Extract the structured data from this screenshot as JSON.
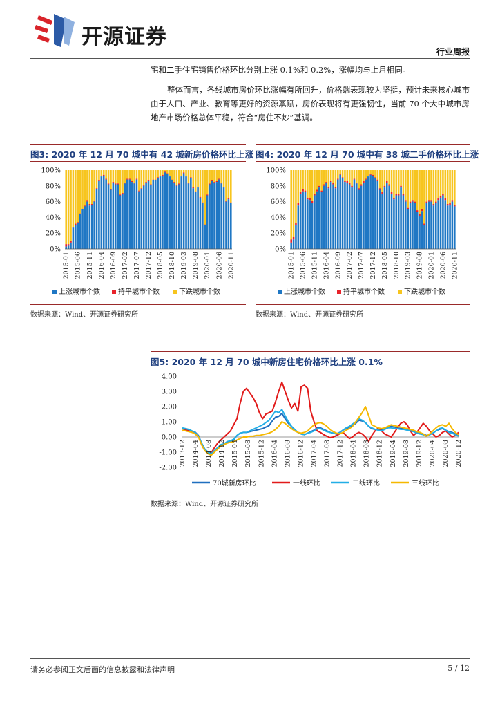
{
  "header": {
    "brand_name": "开源证券",
    "section_tag": "行业周报"
  },
  "body": {
    "paragraph_1": "宅和二手住宅销售价格环比分别上涨 0.1%和 0.2%，涨幅均与上月相同。",
    "paragraph_2": "整体而言，各线城市房价环比涨幅有所回升，价格端表现较为坚挺，预计未来核心城市由于人口、产业、教育等更好的资源禀赋，房价表现将有更强韧性，当前 70 个大中城市房地产市场价格总体平稳，符合“房住不炒”基调。"
  },
  "figures": {
    "fig3": {
      "label": "图3:",
      "title": "2020 年 12 月 70 城中有 42 城新房价格环比上涨",
      "source": "数据来源：Wind、开源证券研究所"
    },
    "fig4": {
      "label": "图4:",
      "title": "2020 年 12 月 70 城中有 38 城二手价格环比上涨",
      "source": "数据来源：Wind、开源证券研究所"
    },
    "fig5": {
      "label": "图5:",
      "title": "2020 年 12 月 70 城中新房住宅价格环比上涨 0.1%",
      "source": "数据来源：Wind、开源证券研究所"
    }
  },
  "footer": {
    "disclaimer": "请务必参阅正文后面的信息披露和法律声明",
    "page": "5 / 12"
  },
  "chart_data": [
    {
      "type": "bar",
      "stacked": true,
      "y_unit": "%",
      "ylim": [
        0,
        100
      ],
      "yticks": [
        "0%",
        "20%",
        "40%",
        "60%",
        "80%",
        "100%"
      ],
      "x_tick_labels": [
        "2015-01",
        "2015-06",
        "2015-11",
        "2016-04",
        "2016-09",
        "2017-02",
        "2017-07",
        "2017-12",
        "2018-05",
        "2018-10",
        "2019-03",
        "2019-08",
        "2020-01",
        "2020-06",
        "2020-11"
      ],
      "legend": [
        "上涨城市个数",
        "持平城市个数",
        "下跌城市个数"
      ],
      "legend_placement": "bottom",
      "colors": [
        "#1f77c4",
        "#e8222a",
        "#f7c51e"
      ],
      "rise_pct": [
        3,
        4,
        8,
        27,
        30,
        33,
        44,
        50,
        54,
        60,
        55,
        56,
        60,
        76,
        86,
        92,
        93,
        88,
        82,
        75,
        84,
        82,
        82,
        68,
        70,
        83,
        88,
        88,
        85,
        83,
        88,
        73,
        76,
        80,
        84,
        86,
        81,
        87,
        87,
        90,
        92,
        93,
        97,
        95,
        92,
        87,
        84,
        80,
        82,
        92,
        96,
        92,
        83,
        90,
        77,
        72,
        78,
        65,
        58,
        30,
        68,
        82,
        86,
        84,
        85,
        88,
        83,
        78,
        60,
        63,
        58
      ],
      "flat_pct": [
        3,
        2,
        2,
        1,
        2,
        1,
        1,
        1,
        1,
        2,
        2,
        1,
        1,
        1,
        1,
        1,
        1,
        1,
        1,
        1,
        1,
        1,
        1,
        1,
        1,
        1,
        1,
        1,
        1,
        1,
        1,
        1,
        1,
        1,
        1,
        1,
        1,
        1,
        1,
        1,
        1,
        1,
        1,
        1,
        1,
        1,
        1,
        1,
        1,
        1,
        1,
        1,
        1,
        1,
        1,
        1,
        1,
        1,
        1,
        1,
        1,
        1,
        1,
        1,
        1,
        1,
        1,
        1,
        1,
        1,
        1
      ]
    },
    {
      "type": "bar",
      "stacked": true,
      "y_unit": "%",
      "ylim": [
        0,
        100
      ],
      "yticks": [
        "0%",
        "20%",
        "40%",
        "60%",
        "80%",
        "100%"
      ],
      "x_tick_labels": [
        "2015-01",
        "2015-06",
        "2015-11",
        "2016-04",
        "2016-09",
        "2017-02",
        "2017-07",
        "2017-12",
        "2018-05",
        "2018-10",
        "2019-03",
        "2019-08",
        "2020-01",
        "2020-06",
        "2020-11"
      ],
      "legend": [
        "上涨城市个数",
        "持平城市个数",
        "下跌城市个数"
      ],
      "legend_placement": "bottom",
      "colors": [
        "#1f77c4",
        "#e8222a",
        "#f7c51e"
      ],
      "rise_pct": [
        8,
        12,
        30,
        55,
        70,
        73,
        72,
        63,
        62,
        58,
        68,
        73,
        78,
        72,
        80,
        84,
        77,
        85,
        82,
        77,
        88,
        94,
        90,
        85,
        84,
        82,
        78,
        88,
        83,
        75,
        80,
        84,
        88,
        92,
        94,
        93,
        90,
        86,
        75,
        70,
        78,
        84,
        80,
        70,
        63,
        68,
        68,
        78,
        68,
        60,
        50,
        58,
        60,
        58,
        47,
        42,
        48,
        30,
        58,
        60,
        60,
        55,
        58,
        62,
        65,
        68,
        62,
        55,
        56,
        60,
        54
      ],
      "flat_pct": [
        4,
        3,
        3,
        3,
        2,
        3,
        2,
        2,
        3,
        3,
        2,
        2,
        2,
        2,
        2,
        1,
        2,
        1,
        2,
        2,
        1,
        1,
        1,
        1,
        2,
        2,
        2,
        1,
        1,
        2,
        2,
        2,
        1,
        1,
        1,
        1,
        1,
        2,
        2,
        2,
        2,
        2,
        2,
        2,
        2,
        2,
        2,
        2,
        2,
        2,
        2,
        2,
        2,
        2,
        2,
        2,
        2,
        2,
        2,
        2,
        2,
        2,
        2,
        2,
        2,
        2,
        2,
        2,
        2,
        2,
        2
      ]
    },
    {
      "type": "line",
      "ylim": [
        -2,
        4
      ],
      "yticks": [
        "-2.00",
        "-1.00",
        "0.00",
        "1.00",
        "2.00",
        "3.00",
        "4.00"
      ],
      "x_tick_labels": [
        "2013-12",
        "2014-04",
        "2014-08",
        "2014-12",
        "2015-04",
        "2015-08",
        "2015-12",
        "2016-04",
        "2016-08",
        "2016-12",
        "2017-04",
        "2017-08",
        "2017-12",
        "2018-04",
        "2018-08",
        "2018-12",
        "2019-04",
        "2019-08",
        "2019-12",
        "2020-04",
        "2020-08",
        "2020-12"
      ],
      "legend_placement": "bottom",
      "series": [
        {
          "name": "70城新房环比",
          "color": "#1f6fbf",
          "values": [
            0.55,
            0.48,
            0.42,
            0.38,
            0.32,
            0.1,
            -0.4,
            -0.8,
            -1.0,
            -1.1,
            -0.9,
            -0.7,
            -0.55,
            -0.5,
            -0.35,
            -0.3,
            -0.2,
            0.1,
            0.25,
            0.3,
            0.3,
            0.35,
            0.4,
            0.45,
            0.5,
            0.55,
            0.65,
            0.75,
            1.05,
            1.3,
            1.35,
            1.55,
            1.2,
            0.9,
            0.7,
            0.45,
            0.3,
            0.2,
            0.15,
            0.25,
            0.35,
            0.45,
            0.6,
            0.6,
            0.5,
            0.4,
            0.3,
            0.25,
            0.2,
            0.3,
            0.45,
            0.55,
            0.65,
            0.75,
            0.9,
            1.1,
            1.05,
            0.95,
            0.7,
            0.55,
            0.5,
            0.5,
            0.45,
            0.55,
            0.65,
            0.7,
            0.65,
            0.6,
            0.55,
            0.55,
            0.5,
            0.45,
            0.4,
            0.3,
            0.25,
            0.2,
            0.1,
            0.15,
            0.25,
            0.4,
            0.5,
            0.55,
            0.45,
            0.35,
            0.3,
            0.2,
            0.1
          ]
        },
        {
          "name": "一线环比",
          "color": "#e11a1a",
          "values": [
            0.4,
            0.45,
            0.4,
            0.35,
            0.3,
            0.05,
            -0.5,
            -0.9,
            -1.0,
            -1.05,
            -0.7,
            -0.4,
            -0.2,
            0.0,
            0.2,
            0.4,
            0.8,
            1.2,
            2.2,
            3.0,
            3.2,
            2.9,
            2.6,
            2.2,
            1.6,
            1.2,
            1.5,
            1.6,
            1.7,
            2.3,
            3.0,
            3.6,
            3.0,
            2.4,
            1.9,
            2.2,
            1.7,
            3.3,
            3.4,
            3.2,
            1.7,
            1.0,
            0.4,
            0.3,
            0.15,
            0.05,
            -0.05,
            0.0,
            0.1,
            0.2,
            0.3,
            0.1,
            -0.1,
            0.0,
            0.2,
            0.3,
            0.2,
            0.0,
            -0.3,
            0.1,
            0.4,
            0.6,
            0.4,
            0.2,
            0.1,
            0.0,
            0.3,
            0.6,
            0.9,
            1.0,
            0.8,
            0.4,
            0.1,
            0.3,
            0.6,
            0.9,
            0.7,
            0.4,
            0.2,
            0.0,
            0.1,
            0.3,
            0.4,
            0.2,
            0.0,
            0.1,
            0.3
          ]
        },
        {
          "name": "二线环比",
          "color": "#22aee6",
          "values": [
            0.6,
            0.55,
            0.5,
            0.4,
            0.3,
            0.05,
            -0.4,
            -0.8,
            -1.0,
            -1.1,
            -0.9,
            -0.7,
            -0.5,
            -0.45,
            -0.3,
            -0.25,
            -0.15,
            0.1,
            0.25,
            0.3,
            0.3,
            0.4,
            0.5,
            0.6,
            0.7,
            0.8,
            0.95,
            1.1,
            1.4,
            1.7,
            1.6,
            1.8,
            1.4,
            1.0,
            0.7,
            0.5,
            0.3,
            0.2,
            0.15,
            0.25,
            0.3,
            0.4,
            0.55,
            0.55,
            0.45,
            0.35,
            0.3,
            0.25,
            0.2,
            0.3,
            0.45,
            0.6,
            0.7,
            0.85,
            1.0,
            1.2,
            1.1,
            0.95,
            0.7,
            0.6,
            0.5,
            0.45,
            0.4,
            0.5,
            0.6,
            0.6,
            0.55,
            0.55,
            0.5,
            0.5,
            0.45,
            0.4,
            0.35,
            0.25,
            0.2,
            0.15,
            0.05,
            0.15,
            0.25,
            0.4,
            0.55,
            0.6,
            0.45,
            0.3,
            0.25,
            0.15,
            0.05
          ]
        },
        {
          "name": "三线环比",
          "color": "#f5b800",
          "values": [
            0.45,
            0.4,
            0.35,
            0.3,
            0.2,
            0.0,
            -0.5,
            -0.9,
            -1.1,
            -1.2,
            -1.0,
            -0.8,
            -0.6,
            -0.5,
            -0.4,
            -0.35,
            -0.3,
            -0.2,
            -0.1,
            0.0,
            0.0,
            0.05,
            0.05,
            0.1,
            0.1,
            0.15,
            0.2,
            0.25,
            0.35,
            0.5,
            0.7,
            1.0,
            0.9,
            0.7,
            0.55,
            0.4,
            0.3,
            0.25,
            0.3,
            0.4,
            0.6,
            0.8,
            0.9,
            0.95,
            0.85,
            0.7,
            0.5,
            0.35,
            0.25,
            0.2,
            0.3,
            0.45,
            0.55,
            0.7,
            1.0,
            1.3,
            1.6,
            2.0,
            1.4,
            0.8,
            0.7,
            0.6,
            0.55,
            0.6,
            0.7,
            0.8,
            0.75,
            0.7,
            0.65,
            0.6,
            0.55,
            0.5,
            0.45,
            0.35,
            0.3,
            0.2,
            0.05,
            0.2,
            0.4,
            0.6,
            0.75,
            0.8,
            0.7,
            0.9,
            0.55,
            0.3,
            0.15
          ]
        }
      ]
    }
  ]
}
